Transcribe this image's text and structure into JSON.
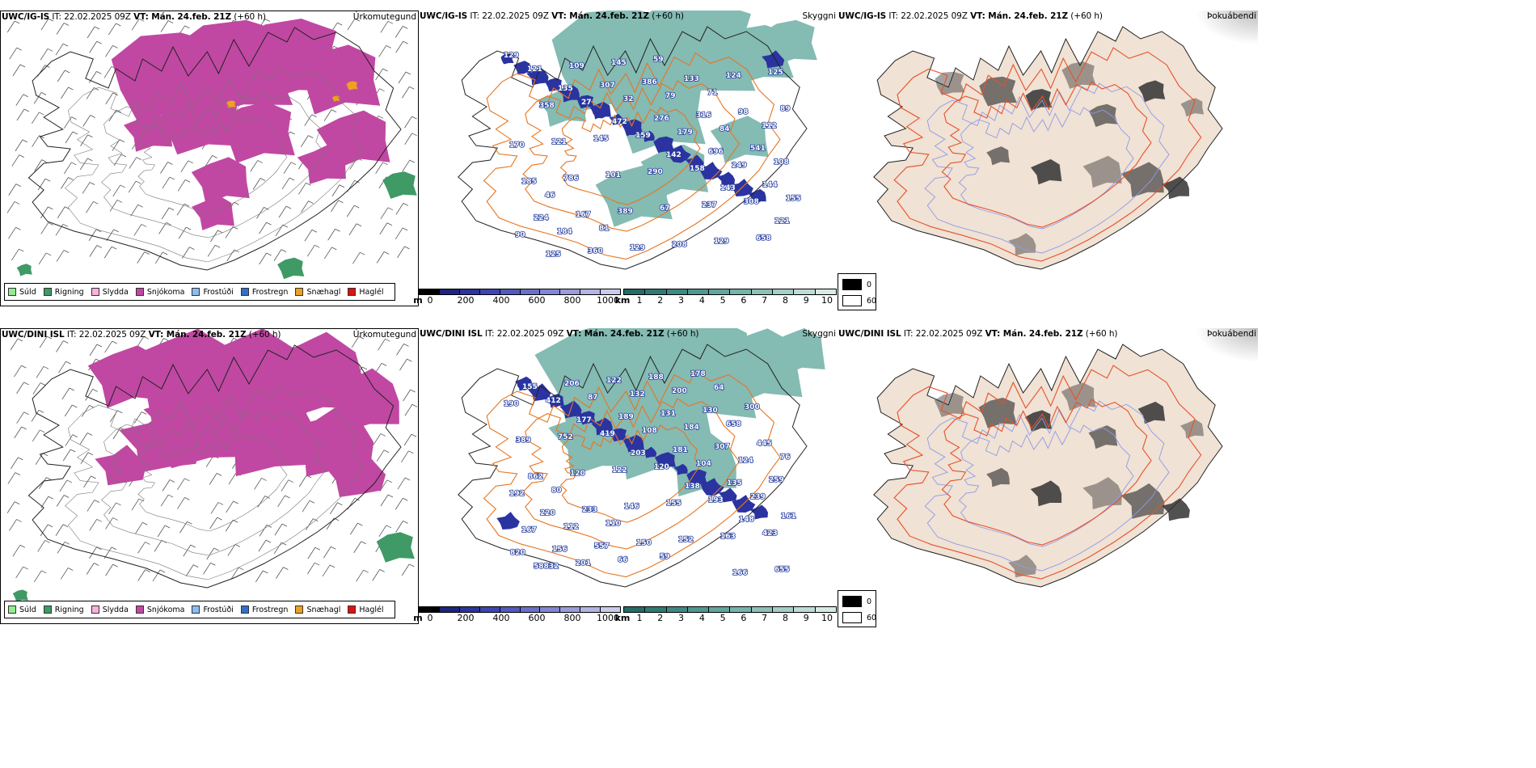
{
  "rows": [
    {
      "model": "UWC/IG-IS",
      "init_label": "IT:",
      "init_time": "22.02.2025 09Z",
      "valid_label": "VT:",
      "valid_time": "Mán. 24.feb. 21Z",
      "lead": "(+60 h)",
      "panels": {
        "precip": "Úrkomutegund",
        "cloud": "Skyggni",
        "fog": "Þokuábendi"
      },
      "peaks": [
        "129",
        "135",
        "472",
        "142",
        "143",
        "121",
        "125",
        "307",
        "276",
        "696",
        "144",
        "224",
        "360",
        "386",
        "316",
        "541",
        "185",
        "167",
        "129",
        "133",
        "98",
        "170",
        "786",
        "389",
        "208",
        "124",
        "89",
        "121",
        "101",
        "67",
        "129",
        "125",
        "358",
        "145",
        "290",
        "237",
        "658",
        "121",
        "27",
        "159",
        "158",
        "308",
        "90",
        "109",
        "32",
        "179",
        "249",
        "155",
        "184",
        "145",
        "79",
        "84",
        "108",
        "46",
        "81",
        "59",
        "71",
        "112"
      ]
    },
    {
      "model": "UWC/DINI ISL",
      "init_label": "IT:",
      "init_time": "22.02.2025 09Z",
      "valid_label": "VT:",
      "valid_time": "Mán. 24.feb. 21Z",
      "lead": "(+60 h)",
      "panels": {
        "precip": "Úrkomutegund",
        "cloud": "Skyggni",
        "fog": "Þokuábendi"
      },
      "peaks": [
        "155",
        "177",
        "203",
        "138",
        "148",
        "820",
        "206",
        "189",
        "181",
        "135",
        "161",
        "156",
        "122",
        "131",
        "307",
        "259",
        "220",
        "557",
        "188",
        "130",
        "445",
        "862",
        "233",
        "150",
        "178",
        "300",
        "389",
        "120",
        "146",
        "152",
        "166",
        "190",
        "752",
        "122",
        "155",
        "163",
        "655",
        "412",
        "419",
        "120",
        "193",
        "423",
        "58832",
        "87",
        "108",
        "104",
        "239",
        "167",
        "201",
        "132",
        "184",
        "124",
        "192",
        "112",
        "66",
        "200",
        "658",
        "76",
        "80",
        "110",
        "59",
        "64"
      ]
    }
  ],
  "precip_legend": [
    {
      "label": "Súld",
      "color": "#90ee90"
    },
    {
      "label": "Rigning",
      "color": "#3f9a66"
    },
    {
      "label": "Slydda",
      "color": "#f7b3d9"
    },
    {
      "label": "Snjókoma",
      "color": "#c048a2"
    },
    {
      "label": "Frostúði",
      "color": "#8cbcf0"
    },
    {
      "label": "Frostregn",
      "color": "#3070c8"
    },
    {
      "label": "Snæhagl",
      "color": "#f0a020"
    },
    {
      "label": "Haglél",
      "color": "#e01010"
    }
  ],
  "cloud_base_bar": {
    "unit": "m",
    "ticks": [
      "0",
      "200",
      "400",
      "600",
      "800",
      "1000"
    ],
    "colors": [
      "#000000",
      "#1e2380",
      "#2b33a0",
      "#3d45b4",
      "#5259c0",
      "#6a70c8",
      "#8286d2",
      "#9a9cda",
      "#b2b4e2",
      "#cacbea"
    ]
  },
  "visibility_bar": {
    "unit": "km",
    "ticks": [
      "1",
      "2",
      "3",
      "4",
      "5",
      "6",
      "7",
      "8",
      "9",
      "10"
    ],
    "colors": [
      "#246c66",
      "#2f7b74",
      "#3d8a83",
      "#4e988f",
      "#61a69c",
      "#76b4aa",
      "#8cc1b7",
      "#a5cfc6",
      "#bedcd5",
      "#d7eae5"
    ]
  },
  "fog_legend": [
    {
      "label": "0",
      "color": "#000000"
    },
    {
      "label": "60",
      "color": "#ffffff"
    }
  ],
  "colors": {
    "snow": "#c048a2",
    "rain": "#3f9a66",
    "sleet_orange": "#f0a020",
    "cloud_teal": "#6fb0a6",
    "roads": "#e87520",
    "land_beige": "#f0e2d4",
    "rivers": "#8f9ae8"
  }
}
